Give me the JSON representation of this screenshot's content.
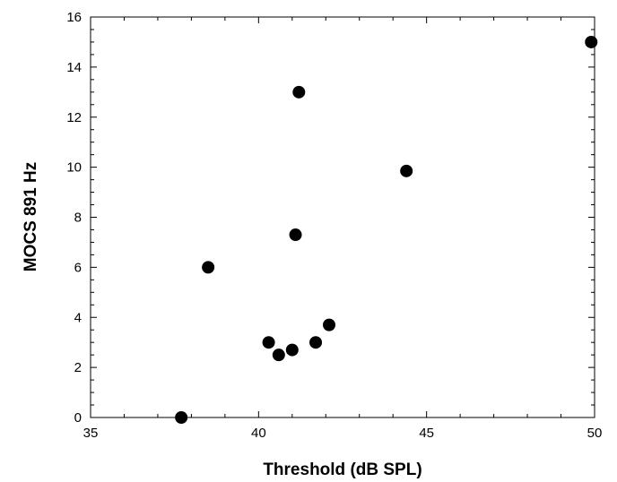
{
  "chart_data": {
    "type": "scatter",
    "title": "",
    "xlabel": "Threshold (dB SPL)",
    "ylabel": "MOCS 891 Hz",
    "xlim": [
      35,
      50
    ],
    "ylim": [
      0,
      16
    ],
    "x_ticks": [
      35,
      40,
      45,
      50
    ],
    "y_ticks": [
      0,
      2,
      4,
      6,
      8,
      10,
      12,
      14,
      16
    ],
    "grid": false,
    "legend": "none",
    "marker_color": "#000000",
    "points": [
      {
        "x": 37.7,
        "y": 0.0
      },
      {
        "x": 38.5,
        "y": 6.0
      },
      {
        "x": 40.3,
        "y": 3.0
      },
      {
        "x": 40.6,
        "y": 2.5
      },
      {
        "x": 41.0,
        "y": 2.7
      },
      {
        "x": 41.1,
        "y": 7.3
      },
      {
        "x": 41.2,
        "y": 13.0
      },
      {
        "x": 41.7,
        "y": 3.0
      },
      {
        "x": 42.1,
        "y": 3.7
      },
      {
        "x": 44.4,
        "y": 9.85
      },
      {
        "x": 49.9,
        "y": 15.0
      }
    ]
  }
}
